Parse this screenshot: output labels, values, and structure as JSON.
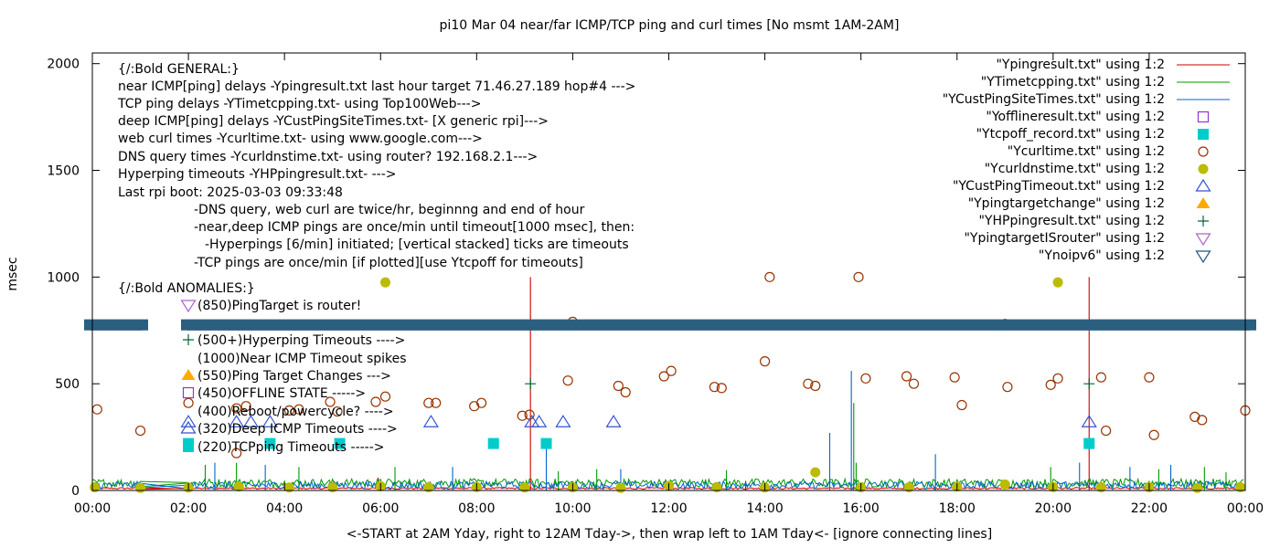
{
  "chart_data": {
    "type": "scatter",
    "title": "pi10 Mar 04  near/far ICMP/TCP ping and curl times [No msmt 1AM-2AM]",
    "xlabel": "<-START at 2AM Yday, right to 12AM Tday->, then wrap left to 1AM Tday<- [ignore connecting lines]",
    "ylabel": "msec",
    "xlim": [
      0,
      24
    ],
    "ylim": [
      0,
      2050
    ],
    "x_ticks": [
      {
        "v": 0,
        "label": "00:00"
      },
      {
        "v": 2,
        "label": "02:00"
      },
      {
        "v": 4,
        "label": "04:00"
      },
      {
        "v": 6,
        "label": "06:00"
      },
      {
        "v": 8,
        "label": "08:00"
      },
      {
        "v": 10,
        "label": "10:00"
      },
      {
        "v": 12,
        "label": "12:00"
      },
      {
        "v": 14,
        "label": "14:00"
      },
      {
        "v": 16,
        "label": "16:00"
      },
      {
        "v": 18,
        "label": "18:00"
      },
      {
        "v": 20,
        "label": "20:00"
      },
      {
        "v": 22,
        "label": "22:00"
      },
      {
        "v": 24,
        "label": "00:00"
      }
    ],
    "y_ticks": [
      {
        "v": 0,
        "label": "0"
      },
      {
        "v": 500,
        "label": "500"
      },
      {
        "v": 1000,
        "label": "1000"
      },
      {
        "v": 1500,
        "label": "1500"
      },
      {
        "v": 2000,
        "label": "2000"
      }
    ],
    "grid": false,
    "legend_position": "top-right",
    "legend": [
      {
        "label": "\"Ypingresult.txt\" using 1:2",
        "kind": "line",
        "color": "#cc0000"
      },
      {
        "label": "\"YTimetcpping.txt\" using 1:2",
        "kind": "line",
        "color": "#009900"
      },
      {
        "label": "\"YCustPingSiteTimes.txt\" using 1:2",
        "kind": "line",
        "color": "#0066cc"
      },
      {
        "label": "\"Yofflineresult.txt\" using 1:2",
        "kind": "open-square",
        "color": "#9933cc"
      },
      {
        "label": "\"Ytcpoff_record.txt\" using 1:2",
        "kind": "filled-square",
        "color": "#00cccc"
      },
      {
        "label": "\"Ycurltime.txt\" using 1:2",
        "kind": "open-circle",
        "color": "#993300"
      },
      {
        "label": "\"Ycurldnstime.txt\" using 1:2",
        "kind": "filled-circle",
        "color": "#bbbb00"
      },
      {
        "label": "\"YCustPingTimeout.txt\" using 1:2",
        "kind": "open-triangle",
        "color": "#3355cc"
      },
      {
        "label": "\"Ypingtargetchange\" using 1:2",
        "kind": "filled-triangle",
        "color": "#ffaa00"
      },
      {
        "label": "\"YHPpingresult.txt\" using 1:2",
        "kind": "plus",
        "color": "#006633"
      },
      {
        "label": "\"YpingtargetISrouter\" using 1:2",
        "kind": "open-down-triangle",
        "color": "#aa66cc"
      },
      {
        "label": "\"Ynoipv6\" using 1:2",
        "kind": "open-down-triangle",
        "color": "#225588"
      }
    ],
    "info_text": [
      "{/:Bold GENERAL:}",
      "near ICMP[ping] delays -Ypingresult.txt last hour target 71.46.27.189 hop#4 --->",
      "TCP ping delays -YTimetcpping.txt- using Top100Web--->",
      "deep ICMP[ping] delays -YCustPingSiteTimes.txt- [X generic rpi]--->",
      "web curl times -Ycurltime.txt- using www.google.com--->",
      "DNS query times -Ycurldnstime.txt- using router? 192.168.2.1--->",
      "Hyperping timeouts -YHPpingresult.txt- --->",
      "Last rpi boot: 2025-03-03 09:33:48",
      "-DNS query, web curl are twice/hr, beginnng and end of hour",
      "-near,deep ICMP pings are once/min until timeout[1000 msec], then:",
      "-Hyperpings [6/min] initiated; [vertical stacked] ticks are timeouts",
      "-TCP pings are once/min [if plotted][use Ytcpoff for timeouts]",
      "{/:Bold ANOMALIES:}"
    ],
    "anomaly_text": [
      {
        "text": "(850)PingTarget is router!",
        "marker": "open-down-triangle",
        "color": "#aa66cc"
      },
      {
        "text": "(500+)Hyperping Timeouts ---->",
        "marker": "plus",
        "color": "#006633"
      },
      {
        "text": "(1000)Near ICMP Timeout spikes",
        "marker": "",
        "color": ""
      },
      {
        "text": "(550)Ping Target Changes --->",
        "marker": "filled-triangle",
        "color": "#ffaa00"
      },
      {
        "text": "(450)OFFLINE STATE ----->",
        "marker": "open-square",
        "color": "#9933cc"
      },
      {
        "text": "(400)Reboot/powercycle? ---->",
        "marker": "",
        "color": ""
      },
      {
        "text": "(320)Deep ICMP Timeouts ---->",
        "marker": "open-triangle",
        "color": "#3355cc"
      },
      {
        "text": "(220)TCPping Timeouts ----->",
        "marker": "filled-square",
        "color": "#00cccc"
      }
    ],
    "noipv6_band": {
      "y": 780
    },
    "series": [
      {
        "name": "\"Ypingresult.txt\" using 1:2",
        "kind": "line",
        "color": "#cc0000",
        "baseline": 10,
        "noise": 8,
        "spikes": [
          [
            9.12,
            1000
          ],
          [
            20.75,
            1000
          ],
          [
            5.95,
            60
          ],
          [
            7.0,
            40
          ],
          [
            13.6,
            45
          ]
        ]
      },
      {
        "name": "\"YTimetcpping.txt\" using 1:2",
        "kind": "line",
        "color": "#009900",
        "baseline": 35,
        "noise": 40,
        "spikes": [
          [
            2.35,
            120
          ],
          [
            3.0,
            130
          ],
          [
            4.3,
            110
          ],
          [
            6.3,
            110
          ],
          [
            9.7,
            90
          ],
          [
            10.5,
            100
          ],
          [
            13.2,
            95
          ],
          [
            15.85,
            410
          ],
          [
            15.9,
            130
          ],
          [
            19.95,
            110
          ],
          [
            22.2,
            100
          ],
          [
            23.15,
            110
          ],
          [
            23.6,
            85
          ]
        ]
      },
      {
        "name": "\"YCustPingSiteTimes.txt\" using 1:2",
        "kind": "line",
        "color": "#0066cc",
        "baseline": 25,
        "noise": 35,
        "spikes": [
          [
            2.55,
            130
          ],
          [
            3.6,
            120
          ],
          [
            7.5,
            110
          ],
          [
            9.45,
            230
          ],
          [
            11.0,
            100
          ],
          [
            15.35,
            270
          ],
          [
            15.8,
            560
          ],
          [
            17.55,
            170
          ],
          [
            20.55,
            130
          ],
          [
            21.6,
            110
          ],
          [
            22.45,
            120
          ]
        ]
      },
      {
        "name": "\"Ycurltime.txt\" using 1:2",
        "kind": "open-circle",
        "color": "#993300",
        "points": [
          [
            0.1,
            380
          ],
          [
            1.0,
            280
          ],
          [
            2.0,
            410
          ],
          [
            3.0,
            175
          ],
          [
            3.0,
            385
          ],
          [
            3.2,
            395
          ],
          [
            4.1,
            375
          ],
          [
            4.3,
            380
          ],
          [
            4.95,
            415
          ],
          [
            5.1,
            370
          ],
          [
            5.9,
            415
          ],
          [
            6.1,
            440
          ],
          [
            7.0,
            410
          ],
          [
            7.15,
            410
          ],
          [
            7.95,
            395
          ],
          [
            8.1,
            410
          ],
          [
            8.95,
            350
          ],
          [
            9.1,
            355
          ],
          [
            9.9,
            515
          ],
          [
            10.0,
            790
          ],
          [
            10.95,
            490
          ],
          [
            11.1,
            460
          ],
          [
            11.9,
            535
          ],
          [
            12.05,
            560
          ],
          [
            12.95,
            485
          ],
          [
            13.1,
            480
          ],
          [
            14.0,
            605
          ],
          [
            14.1,
            1000
          ],
          [
            14.9,
            500
          ],
          [
            15.05,
            490
          ],
          [
            15.95,
            1000
          ],
          [
            16.1,
            525
          ],
          [
            16.95,
            535
          ],
          [
            17.1,
            500
          ],
          [
            17.95,
            530
          ],
          [
            18.1,
            400
          ],
          [
            19.0,
            780
          ],
          [
            19.05,
            485
          ],
          [
            19.95,
            495
          ],
          [
            20.1,
            525
          ],
          [
            21.0,
            530
          ],
          [
            21.1,
            280
          ],
          [
            22.0,
            530
          ],
          [
            22.1,
            260
          ],
          [
            22.95,
            345
          ],
          [
            23.1,
            330
          ],
          [
            24.0,
            375
          ]
        ]
      },
      {
        "name": "\"Ycurldnstime.txt\" using 1:2",
        "kind": "filled-circle",
        "color": "#bbbb00",
        "points": [
          [
            0.05,
            15
          ],
          [
            1.0,
            12
          ],
          [
            2.0,
            14
          ],
          [
            3.05,
            18
          ],
          [
            4.1,
            14
          ],
          [
            5.0,
            15
          ],
          [
            6.0,
            20
          ],
          [
            6.1,
            975
          ],
          [
            7.0,
            15
          ],
          [
            8.0,
            16
          ],
          [
            9.0,
            14
          ],
          [
            10.0,
            15
          ],
          [
            11.0,
            12
          ],
          [
            12.0,
            22
          ],
          [
            13.0,
            15
          ],
          [
            14.0,
            14
          ],
          [
            15.05,
            85
          ],
          [
            16.0,
            15
          ],
          [
            17.0,
            15
          ],
          [
            18.0,
            18
          ],
          [
            19.0,
            28
          ],
          [
            20.0,
            16
          ],
          [
            20.1,
            975
          ],
          [
            21.0,
            15
          ],
          [
            22.0,
            15
          ],
          [
            23.0,
            12
          ],
          [
            23.9,
            15
          ]
        ]
      },
      {
        "name": "\"YCustPingTimeout.txt\" using 1:2",
        "kind": "open-triangle",
        "color": "#3355cc",
        "points": [
          [
            2.0,
            320
          ],
          [
            3.0,
            320
          ],
          [
            3.3,
            320
          ],
          [
            3.7,
            320
          ],
          [
            7.05,
            320
          ],
          [
            9.15,
            320
          ],
          [
            9.3,
            320
          ],
          [
            9.8,
            320
          ],
          [
            10.85,
            320
          ],
          [
            20.75,
            320
          ]
        ]
      },
      {
        "name": "\"Ytcpoff_record.txt\" using 1:2",
        "kind": "filled-square",
        "color": "#00cccc",
        "points": [
          [
            2.0,
            220
          ],
          [
            3.7,
            220
          ],
          [
            5.15,
            220
          ],
          [
            8.35,
            220
          ],
          [
            9.45,
            220
          ],
          [
            20.75,
            220
          ]
        ]
      },
      {
        "name": "\"YHPpingresult.txt\" using 1:2",
        "kind": "plus",
        "color": "#006633",
        "points": [
          [
            9.12,
            500
          ],
          [
            20.75,
            500
          ]
        ]
      }
    ]
  }
}
